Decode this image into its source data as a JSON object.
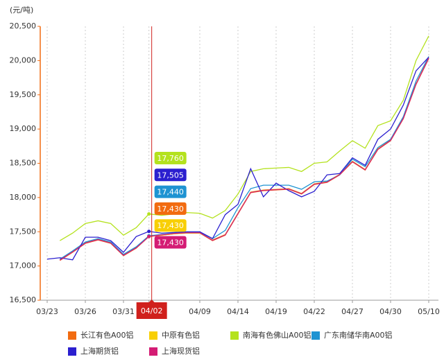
{
  "chart_data": {
    "type": "line",
    "y_label": "(元/吨)",
    "categories": [
      "03/23",
      null,
      null,
      "03/26",
      null,
      null,
      "03/31",
      null,
      "04/02",
      null,
      null,
      null,
      "04/09",
      null,
      null,
      "04/14",
      null,
      null,
      "04/19",
      null,
      null,
      "04/22",
      null,
      null,
      "04/27",
      null,
      null,
      "04/30",
      null,
      null,
      "05/10"
    ],
    "ylim": [
      16500,
      20500
    ],
    "yticks": [
      {
        "value": 16500,
        "label": "16,500"
      },
      {
        "value": 17000,
        "label": "17,000"
      },
      {
        "value": 17500,
        "label": "17,500"
      },
      {
        "value": 18000,
        "label": "18,000"
      },
      {
        "value": 18500,
        "label": "18,500"
      },
      {
        "value": 19000,
        "label": "19,000"
      },
      {
        "value": 19500,
        "label": "19,500"
      },
      {
        "value": 20000,
        "label": "20,000"
      },
      {
        "value": 20500,
        "label": "20,500"
      }
    ],
    "grid": true,
    "series": [
      {
        "name": "长江有色A00铝",
        "color": "#f26b10",
        "values": [
          null,
          17080,
          17200,
          17330,
          17380,
          17330,
          17150,
          17260,
          17430,
          17450,
          17470,
          17480,
          17480,
          17370,
          17450,
          17760,
          18070,
          18100,
          18110,
          18120,
          18050,
          18190,
          18220,
          18330,
          18520,
          18400,
          18700,
          18830,
          19150,
          19650,
          20030
        ],
        "value_labels": [
          null,
          null,
          null,
          null,
          null,
          null,
          null,
          null,
          "17,430",
          null,
          null,
          null,
          null,
          null,
          null,
          null,
          null,
          null,
          null,
          null,
          null,
          null,
          null,
          null,
          null,
          null,
          null,
          null,
          null,
          null,
          null
        ]
      },
      {
        "name": "中原有色铝",
        "color": "#f8cf05",
        "values": [
          null,
          17090,
          17210,
          17340,
          17390,
          17340,
          17160,
          17270,
          17430,
          17450,
          17470,
          17480,
          17480,
          17380,
          17460,
          17770,
          18080,
          18110,
          18120,
          18130,
          18060,
          18200,
          18230,
          18340,
          18530,
          18410,
          18710,
          18840,
          19160,
          19660,
          20040
        ],
        "value_labels": [
          null,
          null,
          null,
          null,
          null,
          null,
          null,
          null,
          "17,430",
          null,
          null,
          null,
          null,
          null,
          null,
          null,
          null,
          null,
          null,
          null,
          null,
          null,
          null,
          null,
          null,
          null,
          null,
          null,
          null,
          null,
          null
        ]
      },
      {
        "name": "南海有色佛山A00铝",
        "color": "#b4e21e",
        "values": [
          null,
          17370,
          17480,
          17620,
          17660,
          17620,
          17450,
          17560,
          17760,
          17740,
          17760,
          17780,
          17770,
          17700,
          17810,
          18050,
          18380,
          18420,
          18430,
          18440,
          18380,
          18500,
          18520,
          18680,
          18830,
          18720,
          19050,
          19120,
          19420,
          20000,
          20360
        ],
        "value_labels": [
          null,
          null,
          null,
          null,
          null,
          null,
          null,
          null,
          "17,760",
          null,
          null,
          null,
          null,
          null,
          null,
          null,
          null,
          null,
          null,
          null,
          null,
          null,
          null,
          null,
          null,
          null,
          null,
          null,
          null,
          null,
          null
        ]
      },
      {
        "name": "广东南储华南A00铝",
        "color": "#1e93d2",
        "values": [
          null,
          17100,
          17220,
          17350,
          17400,
          17350,
          17170,
          17280,
          17440,
          17460,
          17480,
          17490,
          17490,
          17400,
          17520,
          17850,
          18130,
          18180,
          18180,
          18180,
          18120,
          18230,
          18240,
          18330,
          18560,
          18450,
          18730,
          18850,
          19180,
          19700,
          20060
        ],
        "value_labels": [
          null,
          null,
          null,
          null,
          null,
          null,
          null,
          null,
          "17,440",
          null,
          null,
          null,
          null,
          null,
          null,
          null,
          null,
          null,
          null,
          null,
          null,
          null,
          null,
          null,
          null,
          null,
          null,
          null,
          null,
          null,
          null
        ]
      },
      {
        "name": "上海期货铝",
        "color": "#2b1fcf",
        "values": [
          17100,
          17120,
          17090,
          17420,
          17420,
          17370,
          17200,
          17430,
          17505,
          17480,
          17490,
          17500,
          17500,
          17400,
          17750,
          17900,
          18420,
          18010,
          18210,
          18100,
          18010,
          18090,
          18330,
          18350,
          18580,
          18470,
          18850,
          19000,
          19350,
          19850,
          20050
        ],
        "value_labels": [
          null,
          null,
          null,
          null,
          null,
          null,
          null,
          null,
          "17,505",
          null,
          null,
          null,
          null,
          null,
          null,
          null,
          null,
          null,
          null,
          null,
          null,
          null,
          null,
          null,
          null,
          null,
          null,
          null,
          null,
          null,
          null
        ]
      },
      {
        "name": "上海现货铝",
        "color": "#d41c74",
        "values": [
          null,
          17085,
          17205,
          17335,
          17385,
          17335,
          17155,
          17265,
          17430,
          17455,
          17475,
          17485,
          17485,
          17375,
          17455,
          17765,
          18075,
          18105,
          18115,
          18125,
          18055,
          18195,
          18225,
          18335,
          18525,
          18405,
          18705,
          18835,
          19155,
          19655,
          20035
        ],
        "value_labels": [
          null,
          null,
          null,
          null,
          null,
          null,
          null,
          null,
          "17,430",
          null,
          null,
          null,
          null,
          null,
          null,
          null,
          null,
          null,
          null,
          null,
          null,
          null,
          null,
          null,
          null,
          null,
          null,
          null,
          null,
          null,
          null
        ]
      }
    ]
  }
}
